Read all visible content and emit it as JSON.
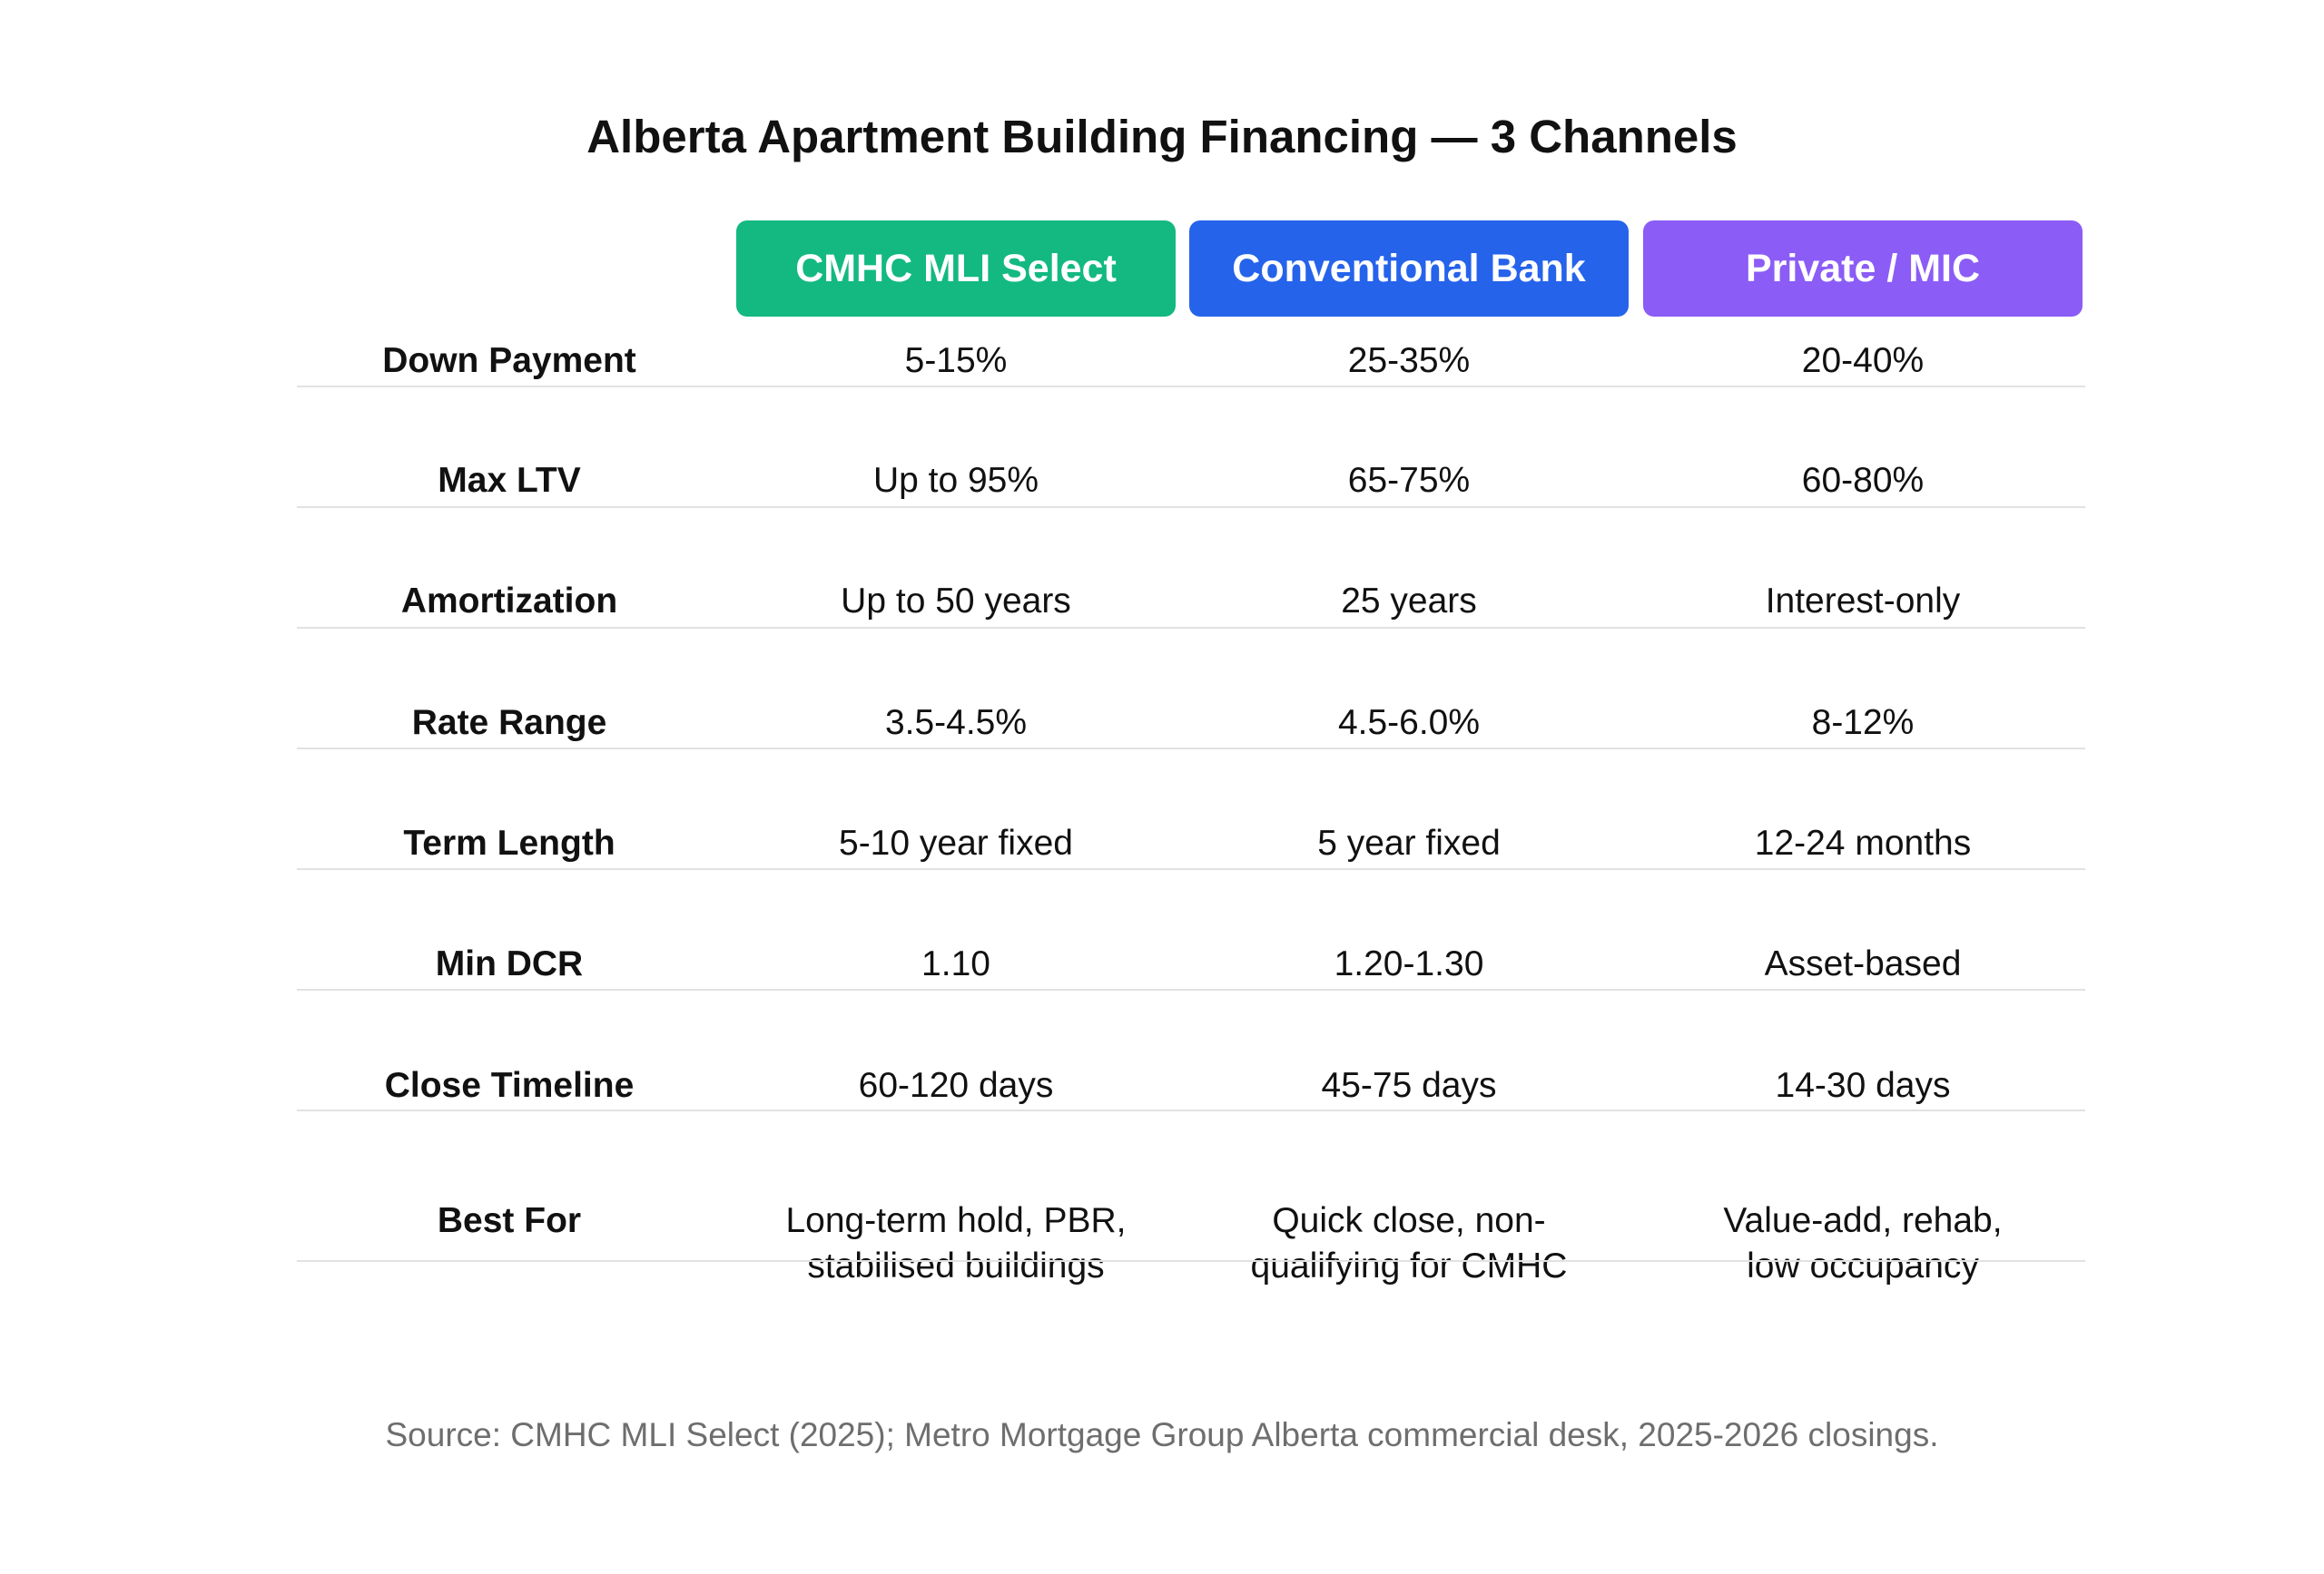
{
  "chart_data": {
    "type": "table",
    "title": "Alberta Apartment Building Financing — 3 Channels",
    "columns": [
      {
        "label": "CMHC MLI Select",
        "color": "#13b981"
      },
      {
        "label": "Conventional Bank",
        "color": "#2563eb"
      },
      {
        "label": "Private / MIC",
        "color": "#8b5cf6"
      }
    ],
    "rows": [
      {
        "label": "Down Payment",
        "values": [
          [
            "5-15%"
          ],
          [
            "25-35%"
          ],
          [
            "20-40%"
          ]
        ]
      },
      {
        "label": "Max LTV",
        "values": [
          [
            "Up to 95%"
          ],
          [
            "65-75%"
          ],
          [
            "60-80%"
          ]
        ]
      },
      {
        "label": "Amortization",
        "values": [
          [
            "Up to 50 years"
          ],
          [
            "25 years"
          ],
          [
            "Interest-only"
          ]
        ]
      },
      {
        "label": "Rate Range",
        "values": [
          [
            "3.5-4.5%"
          ],
          [
            "4.5-6.0%"
          ],
          [
            "8-12%"
          ]
        ]
      },
      {
        "label": "Term Length",
        "values": [
          [
            "5-10 year fixed"
          ],
          [
            "5 year fixed"
          ],
          [
            "12-24 months"
          ]
        ]
      },
      {
        "label": "Min DCR",
        "values": [
          [
            "1.10"
          ],
          [
            "1.20-1.30"
          ],
          [
            "Asset-based"
          ]
        ]
      },
      {
        "label": "Close Timeline",
        "values": [
          [
            "60-120 days"
          ],
          [
            "45-75 days"
          ],
          [
            "14-30 days"
          ]
        ]
      },
      {
        "label": "Best For",
        "values": [
          [
            "Long-term hold, PBR,",
            "stabilised buildings"
          ],
          [
            "Quick close, non-",
            "qualifying for CMHC"
          ],
          [
            "Value-add, rehab,",
            "low occupancy"
          ]
        ]
      }
    ],
    "source": "Source: CMHC MLI Select (2025); Metro Mortgage Group Alberta commercial desk, 2025-2026 closings."
  }
}
